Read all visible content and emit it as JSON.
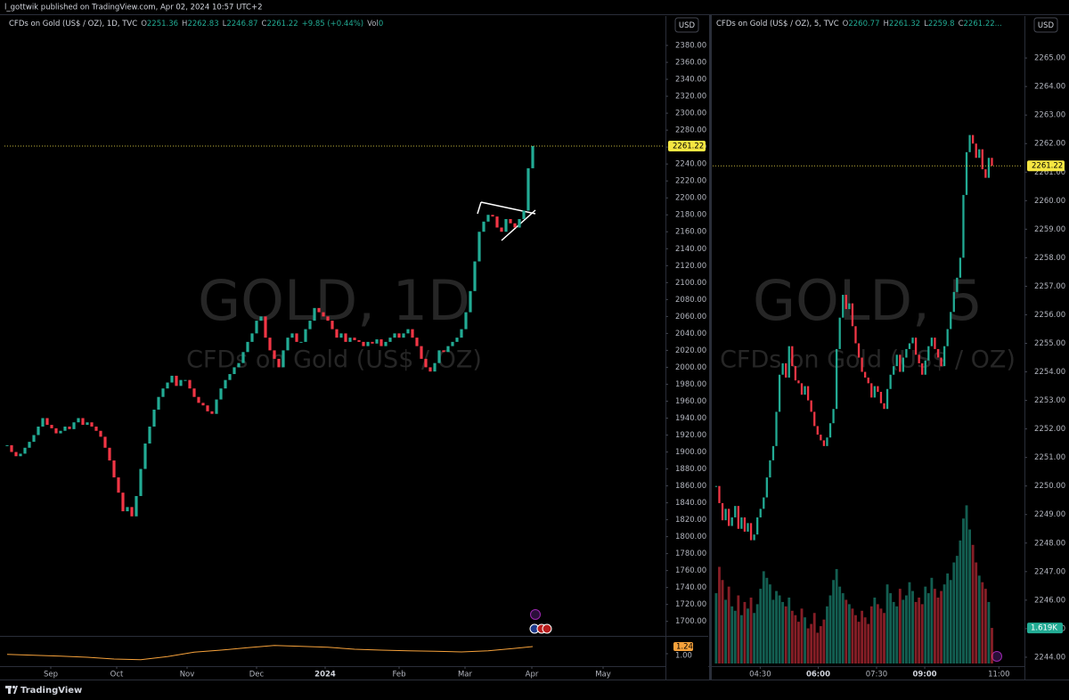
{
  "header": {
    "publisher": "l_gottwik published on TradingView.com, Apr 02, 2024 10:57 UTC+2",
    "brand": "TradingView"
  },
  "chart_data": [
    {
      "type": "candlestick",
      "title": "CFDs on Gold (US$ / OZ), 1D, TVC",
      "legend": [
        {
          "label": "O",
          "value": 2251.36
        },
        {
          "label": "H",
          "value": 2262.83
        },
        {
          "label": "L",
          "value": 2246.87
        },
        {
          "label": "C",
          "value": 2261.22
        }
      ],
      "change": "+9.85 (+0.44%)",
      "volume_label": "Vol",
      "volume_value": 0,
      "currency": "USD",
      "watermark": "GOLD, 1D",
      "watermark_subtitle": "CFDs on Gold (US$ / OZ)",
      "up_color": "#22ab94",
      "down_color": "#f23645",
      "values": [
        1908,
        1900,
        1895,
        1898,
        1905,
        1912,
        1920,
        1930,
        1940,
        1932,
        1928,
        1922,
        1925,
        1930,
        1927,
        1935,
        1940,
        1932,
        1935,
        1930,
        1925,
        1918,
        1905,
        1890,
        1870,
        1852,
        1830,
        1835,
        1824,
        1848,
        1880,
        1910,
        1930,
        1950,
        1965,
        1975,
        1982,
        1990,
        1978,
        1985,
        1985,
        1975,
        1965,
        1958,
        1955,
        1948,
        1945,
        1962,
        1975,
        1985,
        1992,
        2000,
        2005,
        2018,
        2030,
        2040,
        2055,
        2060,
        2035,
        2020,
        2010,
        2000,
        2020,
        2035,
        2040,
        2030,
        2030,
        2045,
        2055,
        2070,
        2065,
        2060,
        2055,
        2045,
        2035,
        2040,
        2030,
        2035,
        2032,
        2030,
        2025,
        2030,
        2028,
        2033,
        2025,
        2030,
        2035,
        2040,
        2035,
        2040,
        2045,
        2035,
        2025,
        2010,
        2000,
        1995,
        2005,
        2020,
        2018,
        2025,
        2030,
        2035,
        2045,
        2065,
        2090,
        2125,
        2160,
        2172,
        2180,
        2178,
        2165,
        2160,
        2175,
        2170,
        2165,
        2175,
        2185,
        2235,
        2261.22
      ],
      "xlim": [
        -0.6,
        147.4
      ],
      "xticks": [
        {
          "value": 9.8,
          "label": "Sep"
        },
        {
          "value": 24.6,
          "label": "Oct"
        },
        {
          "value": 40.4,
          "label": "Nov"
        },
        {
          "value": 56,
          "label": "Dec"
        },
        {
          "value": 71.4,
          "label": "2024",
          "bold": true
        },
        {
          "value": 88,
          "label": "Feb"
        },
        {
          "value": 102.8,
          "label": "Mar"
        },
        {
          "value": 117.8,
          "label": "Apr"
        },
        {
          "value": 133.8,
          "label": "May"
        }
      ],
      "ylim": [
        1685,
        2414.7
      ],
      "yticks": [
        {
          "value": 1700,
          "label": "1700.00"
        },
        {
          "value": 1720,
          "label": "1720.00"
        },
        {
          "value": 1740,
          "label": "1740.00"
        },
        {
          "value": 1760,
          "label": "1760.00"
        },
        {
          "value": 1780,
          "label": "1780.00"
        },
        {
          "value": 1800,
          "label": "1800.00"
        },
        {
          "value": 1820,
          "label": "1820.00"
        },
        {
          "value": 1840,
          "label": "1840.00"
        },
        {
          "value": 1860,
          "label": "1860.00"
        },
        {
          "value": 1880,
          "label": "1880.00"
        },
        {
          "value": 1900,
          "label": "1900.00"
        },
        {
          "value": 1920,
          "label": "1920.00"
        },
        {
          "value": 1940,
          "label": "1940.00"
        },
        {
          "value": 1960,
          "label": "1960.00"
        },
        {
          "value": 1980,
          "label": "1980.00"
        },
        {
          "value": 2000,
          "label": "2000.00"
        },
        {
          "value": 2020,
          "label": "2020.00"
        },
        {
          "value": 2040,
          "label": "2040.00"
        },
        {
          "value": 2060,
          "label": "2060.00"
        },
        {
          "value": 2080,
          "label": "2080.00"
        },
        {
          "value": 2100,
          "label": "2100.00"
        },
        {
          "value": 2120,
          "label": "2120.00"
        },
        {
          "value": 2140,
          "label": "2140.00"
        },
        {
          "value": 2160,
          "label": "2160.00"
        },
        {
          "value": 2180,
          "label": "2180.00"
        },
        {
          "value": 2200,
          "label": "2200.00"
        },
        {
          "value": 2220,
          "label": "2220.00"
        },
        {
          "value": 2240,
          "label": "2240.00"
        },
        {
          "value": 2260,
          "label": "2260.00"
        },
        {
          "value": 2280,
          "label": "2280.00"
        },
        {
          "value": 2300,
          "label": "2300.00"
        },
        {
          "value": 2320,
          "label": "2320.00"
        },
        {
          "value": 2340,
          "label": "2340.00"
        },
        {
          "value": 2360,
          "label": "2360.00"
        },
        {
          "value": 2380,
          "label": "2380.00"
        }
      ],
      "last_price": 2261.22,
      "indicator": {
        "color": "#f7a23b",
        "x": [
          0,
          6,
          12,
          18,
          24,
          30,
          36,
          42,
          48,
          54,
          60,
          66,
          72,
          78,
          84,
          90,
          96,
          102,
          108,
          114,
          118
        ],
        "values": [
          0.98,
          0.95,
          0.92,
          0.88,
          0.82,
          0.8,
          0.9,
          1.05,
          1.12,
          1.2,
          1.28,
          1.25,
          1.22,
          1.15,
          1.12,
          1.1,
          1.08,
          1.06,
          1.1,
          1.18,
          1.24
        ],
        "ylim": [
          0.67,
          1.54
        ],
        "last": {
          "value": 1.24,
          "label": "1.24"
        },
        "ticks": [
          {
            "value": 1,
            "label": "1.00"
          }
        ]
      }
    },
    {
      "type": "candlestick",
      "title": "CFDs on Gold (US$ / OZ), 5, TVC",
      "legend": [
        {
          "label": "O",
          "value": 2260.77
        },
        {
          "label": "H",
          "value": 2261.32
        },
        {
          "label": "L",
          "value": 2259.8
        },
        {
          "label": "C",
          "value": "2261.22..."
        }
      ],
      "currency": "USD",
      "watermark": "GOLD, 5",
      "watermark_subtitle": "CFDs on Gold (US$ / OZ)",
      "up_color": "#22ab94",
      "down_color": "#f23645",
      "values": [
        2250.0,
        2249.4,
        2248.8,
        2249.2,
        2248.6,
        2248.9,
        2249.3,
        2248.5,
        2248.9,
        2248.4,
        2248.7,
        2248.1,
        2248.3,
        2248.9,
        2249.2,
        2249.6,
        2250.3,
        2250.9,
        2251.4,
        2252.6,
        2253.9,
        2254.3,
        2253.8,
        2254.9,
        2254.2,
        2253.7,
        2253.6,
        2253.2,
        2253.5,
        2253.0,
        2252.6,
        2252.1,
        2251.8,
        2251.6,
        2251.4,
        2251.7,
        2252.2,
        2252.7,
        2254.8,
        2255.9,
        2256.7,
        2256.2,
        2256.4,
        2255.6,
        2255.0,
        2254.5,
        2254.0,
        2253.8,
        2253.6,
        2253.1,
        2253.5,
        2253.3,
        2252.9,
        2252.7,
        2253.4,
        2253.9,
        2254.2,
        2254.6,
        2254.0,
        2254.5,
        2254.8,
        2255.0,
        2255.2,
        2254.6,
        2254.3,
        2253.9,
        2254.4,
        2254.9,
        2255.2,
        2254.8,
        2254.5,
        2254.2,
        2254.9,
        2255.5,
        2256.1,
        2256.8,
        2257.3,
        2258.0,
        2260.2,
        2261.7,
        2262.3,
        2262.0,
        2261.5,
        2261.8,
        2261.1,
        2260.8,
        2261.5,
        2261.22
      ],
      "xlim": [
        -1.1,
        96.7
      ],
      "xticks": [
        {
          "value": 13.9,
          "label": "04:30"
        },
        {
          "value": 32.2,
          "label": "06:00",
          "bold": true
        },
        {
          "value": 50.6,
          "label": "07:30"
        },
        {
          "value": 65.8,
          "label": "09:00",
          "bold": true
        },
        {
          "value": 89.2,
          "label": "11:00"
        }
      ],
      "ylim": [
        2243.78,
        2266.47
      ],
      "yticks": [
        {
          "value": 2244,
          "label": "2244.00"
        },
        {
          "value": 2245,
          "label": "2245.00"
        },
        {
          "value": 2246,
          "label": "2246.00"
        },
        {
          "value": 2247,
          "label": "2247.00"
        },
        {
          "value": 2248,
          "label": "2248.00"
        },
        {
          "value": 2249,
          "label": "2249.00"
        },
        {
          "value": 2250,
          "label": "2250.00"
        },
        {
          "value": 2251,
          "label": "2251.00"
        },
        {
          "value": 2252,
          "label": "2252.00"
        },
        {
          "value": 2253,
          "label": "2253.00"
        },
        {
          "value": 2254,
          "label": "2254.00"
        },
        {
          "value": 2255,
          "label": "2255.00"
        },
        {
          "value": 2256,
          "label": "2256.00"
        },
        {
          "value": 2257,
          "label": "2257.00"
        },
        {
          "value": 2258,
          "label": "2258.00"
        },
        {
          "value": 2259,
          "label": "2259.00"
        },
        {
          "value": 2260,
          "label": "2260.00"
        },
        {
          "value": 2261,
          "label": "2261.00"
        },
        {
          "value": 2262,
          "label": "2262.00"
        },
        {
          "value": 2263,
          "label": "2263.00"
        },
        {
          "value": 2264,
          "label": "2264.00"
        },
        {
          "value": 2265,
          "label": "2265.00"
        }
      ],
      "last_price": 2261.22,
      "volume": {
        "values": [
          3200,
          4400,
          3800,
          2900,
          3500,
          2600,
          2400,
          3100,
          2200,
          2800,
          2500,
          3000,
          2300,
          2700,
          3400,
          4200,
          3900,
          3600,
          2900,
          3300,
          3100,
          2800,
          2600,
          3000,
          2400,
          2200,
          1900,
          2500,
          2100,
          1600,
          1800,
          2300,
          1400,
          1700,
          2000,
          2600,
          3100,
          3800,
          4300,
          3500,
          3200,
          2900,
          2700,
          2500,
          2200,
          1900,
          2400,
          2100,
          1800,
          2600,
          3000,
          2700,
          2500,
          2300,
          3600,
          3200,
          2800,
          2600,
          3400,
          2900,
          3100,
          3700,
          3300,
          2800,
          3000,
          2700,
          3500,
          3200,
          3900,
          3400,
          3000,
          3300,
          3600,
          4100,
          3800,
          4600,
          4900,
          5600,
          6600,
          7200,
          6100,
          5400,
          4600,
          4000,
          3700,
          3400,
          2800,
          1619
        ],
        "ylim": [
          0,
          7500
        ],
        "last": {
          "value": 1619,
          "label": "1.619K"
        }
      }
    }
  ]
}
